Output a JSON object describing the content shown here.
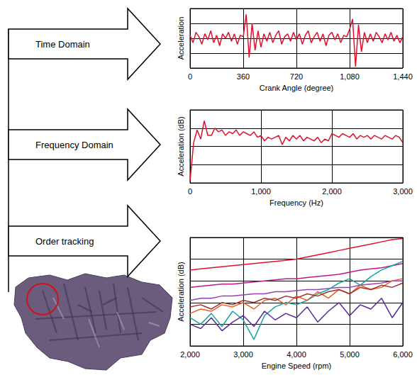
{
  "diagram": {
    "arrows": [
      "Time Domain",
      "Frequency Domain",
      "Order tracking"
    ]
  },
  "chart_data": [
    {
      "type": "line",
      "x_label": "Crank Angle (degree)",
      "y_label": "Acceleration",
      "x": [
        0,
        20,
        40,
        60,
        80,
        100,
        120,
        140,
        160,
        180,
        200,
        220,
        240,
        260,
        280,
        300,
        320,
        340,
        360,
        380,
        400,
        420,
        440,
        460,
        480,
        500,
        520,
        540,
        560,
        580,
        600,
        620,
        640,
        660,
        680,
        700,
        720,
        740,
        760,
        780,
        800,
        820,
        840,
        860,
        880,
        900,
        920,
        940,
        960,
        980,
        1000,
        1020,
        1040,
        1060,
        1080,
        1100,
        1120,
        1140,
        1160,
        1180,
        1200,
        1220,
        1240,
        1260,
        1280,
        1300,
        1320,
        1340,
        1360,
        1380,
        1400,
        1420,
        1440
      ],
      "series": [
        {
          "color": "#e3102c",
          "values": [
            0.2,
            -0.3,
            0.4,
            0.1,
            -0.4,
            0.3,
            -0.1,
            0.5,
            -0.3,
            0.2,
            -0.5,
            0.3,
            0.0,
            0.4,
            -0.2,
            0.3,
            -0.4,
            0.2,
            0.1,
            1.6,
            -1.3,
            1.0,
            -0.8,
            0.5,
            -0.6,
            0.3,
            -0.2,
            0.4,
            -0.3,
            0.2,
            0.5,
            -0.4,
            0.1,
            0.3,
            -0.2,
            0.4,
            -0.1,
            0.3,
            -0.4,
            0.2,
            0.5,
            -0.3,
            0.1,
            0.4,
            -0.2,
            0.3,
            -0.5,
            0.2,
            0.4,
            -0.1,
            0.3,
            -0.3,
            0.2,
            0.1,
            0.6,
            1.3,
            -1.9,
            0.9,
            -0.9,
            0.4,
            -0.3,
            0.3,
            -0.2,
            0.4,
            0.1,
            -0.3,
            0.3,
            -0.1,
            0.4,
            -0.2,
            0.2,
            -0.3,
            0.1
          ]
        }
      ],
      "xlim": [
        0,
        1440
      ],
      "xticks": [
        0,
        360,
        720,
        1080,
        1440
      ],
      "ylim": [
        -2,
        2
      ],
      "yticks": [
        -2,
        -1,
        0,
        1,
        2
      ],
      "grid": true,
      "tick_labels": "x"
    },
    {
      "type": "line",
      "x_label": "Frequency (Hz)",
      "y_label": "Acceleration (dB)",
      "x": [
        0,
        50,
        100,
        150,
        200,
        250,
        300,
        350,
        400,
        450,
        500,
        550,
        600,
        650,
        700,
        750,
        800,
        850,
        900,
        950,
        1000,
        1050,
        1100,
        1150,
        1200,
        1250,
        1300,
        1350,
        1400,
        1450,
        1500,
        1550,
        1600,
        1650,
        1700,
        1750,
        1800,
        1850,
        1900,
        1950,
        2000,
        2050,
        2100,
        2150,
        2200,
        2250,
        2300,
        2350,
        2400,
        2450,
        2500,
        2550,
        2600,
        2650,
        2700,
        2750,
        2800,
        2850,
        2900,
        2950,
        3000
      ],
      "series": [
        {
          "color": "#e3102c",
          "values": [
            0.1,
            2.2,
            2.9,
            2.4,
            3.4,
            2.6,
            2.6,
            3.0,
            2.8,
            2.9,
            2.6,
            2.8,
            2.7,
            2.9,
            2.6,
            2.8,
            2.7,
            2.6,
            2.8,
            2.5,
            2.6,
            2.3,
            2.5,
            2.4,
            2.5,
            2.6,
            2.1,
            2.5,
            2.3,
            2.6,
            2.4,
            2.6,
            2.3,
            2.5,
            2.4,
            2.3,
            2.5,
            2.2,
            2.4,
            2.3,
            2.7,
            2.6,
            2.5,
            2.7,
            2.6,
            2.5,
            2.7,
            2.4,
            2.6,
            2.5,
            2.6,
            2.4,
            2.6,
            2.5,
            2.4,
            2.6,
            2.5,
            2.4,
            2.6,
            2.5,
            2.2
          ]
        }
      ],
      "xlim": [
        0,
        3000
      ],
      "xticks": [
        0,
        1000,
        2000,
        3000
      ],
      "ylim": [
        0,
        4
      ],
      "yticks": [
        0,
        1,
        2,
        3,
        4
      ],
      "grid": true,
      "tick_labels": "x"
    },
    {
      "type": "line",
      "x_label": "Engine Speed (rpm)",
      "y_label": "Acceleration (dB)",
      "x": [
        2000,
        2200,
        2400,
        2600,
        2800,
        3000,
        3200,
        3400,
        3600,
        3800,
        4000,
        4200,
        4400,
        4600,
        4800,
        5000,
        5200,
        5400,
        5600,
        5800,
        6000
      ],
      "series": [
        {
          "color": "#e3102c",
          "values": [
            3.5,
            3.55,
            3.6,
            3.65,
            3.7,
            3.75,
            3.8,
            3.85,
            3.9,
            3.95,
            4.0,
            4.1,
            4.2,
            4.3,
            4.4,
            4.5,
            4.6,
            4.7,
            4.8,
            4.9,
            4.95
          ]
        },
        {
          "color": "#c0168c",
          "values": [
            2.7,
            2.75,
            2.8,
            2.85,
            2.85,
            2.9,
            2.95,
            3.0,
            3.05,
            3.1,
            3.1,
            3.15,
            3.2,
            3.25,
            3.3,
            3.4,
            3.5,
            3.55,
            3.6,
            3.7,
            3.8
          ]
        },
        {
          "color": "#9a3fb5",
          "values": [
            2.1,
            2.2,
            2.2,
            2.3,
            2.3,
            2.35,
            2.4,
            2.4,
            2.5,
            2.5,
            2.55,
            2.6,
            2.6,
            2.65,
            2.7,
            2.7,
            2.8,
            2.85,
            2.9,
            3.0,
            3.0
          ]
        },
        {
          "color": "#1aa3a3",
          "values": [
            1.3,
            1.0,
            1.5,
            0.9,
            1.6,
            1.2,
            0.3,
            1.4,
            1.8,
            2.0,
            1.9,
            2.1,
            2.4,
            2.6,
            2.9,
            3.1,
            2.8,
            3.2,
            3.5,
            3.7,
            3.9
          ]
        },
        {
          "color": "#e8602c",
          "values": [
            1.5,
            1.7,
            1.6,
            1.9,
            1.8,
            2.0,
            1.7,
            2.1,
            2.2,
            1.9,
            2.3,
            2.1,
            2.5,
            2.2,
            2.6,
            2.4,
            2.8,
            2.6,
            2.7,
            3.0,
            3.1
          ]
        },
        {
          "color": "#a0302a",
          "values": [
            1.8,
            1.9,
            1.7,
            2.0,
            1.9,
            2.1,
            2.0,
            2.2,
            2.1,
            2.3,
            2.2,
            2.4,
            2.3,
            2.5,
            2.6,
            2.4,
            2.7,
            2.6,
            2.8,
            2.7,
            2.9
          ]
        },
        {
          "color": "#5a2a9a",
          "values": [
            1.0,
            0.8,
            1.3,
            0.7,
            1.1,
            1.4,
            0.9,
            1.6,
            1.2,
            1.5,
            1.3,
            1.8,
            1.1,
            1.6,
            2.0,
            1.4,
            1.9,
            1.7,
            2.2,
            1.3,
            2.0
          ]
        }
      ],
      "xlim": [
        2000,
        6000
      ],
      "xticks": [
        2000,
        3000,
        4000,
        5000,
        6000
      ],
      "ylim": [
        0,
        5
      ],
      "yticks": [
        0,
        1,
        2,
        3,
        4,
        5
      ],
      "grid": true,
      "tick_labels": "x"
    }
  ]
}
